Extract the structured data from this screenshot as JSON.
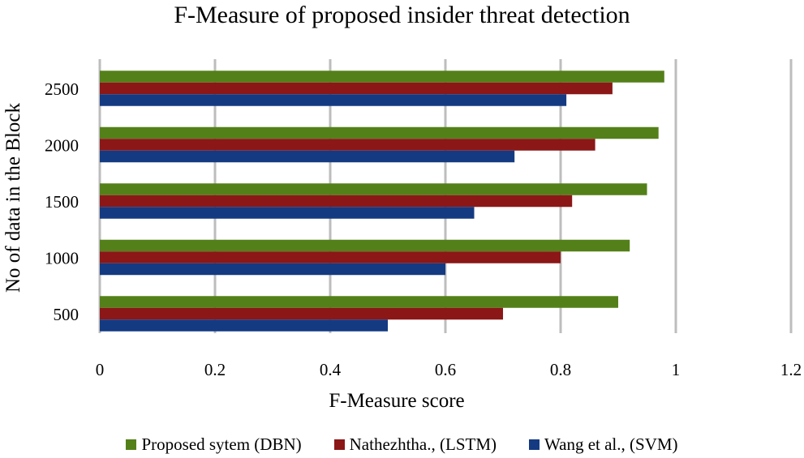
{
  "chart_data": {
    "type": "bar",
    "orientation": "horizontal",
    "title": "F-Measure of proposed insider threat detection",
    "xlabel": "F-Measure score",
    "ylabel": "No of data in the Block",
    "categories": [
      "500",
      "1000",
      "1500",
      "2000",
      "2500"
    ],
    "xlim": [
      0,
      1.2
    ],
    "xticks": [
      "0",
      "0.2",
      "0.4",
      "0.6",
      "0.8",
      "1",
      "1.2"
    ],
    "grid": true,
    "legend_position": "bottom",
    "series": [
      {
        "name": "Proposed sytem (DBN)",
        "color": "#548019",
        "values": [
          0.9,
          0.92,
          0.95,
          0.97,
          0.98
        ]
      },
      {
        "name": "Nathezhtha., (LSTM)",
        "color": "#8B1717",
        "values": [
          0.7,
          0.8,
          0.82,
          0.86,
          0.89
        ]
      },
      {
        "name": "Wang et al., (SVM)",
        "color": "#143A82",
        "values": [
          0.5,
          0.6,
          0.65,
          0.72,
          0.81
        ]
      }
    ]
  }
}
